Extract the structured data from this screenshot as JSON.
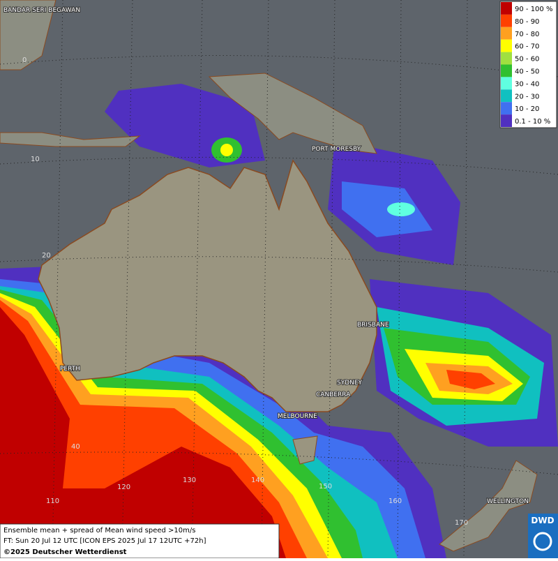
{
  "legend": {
    "items": [
      {
        "label": "90 - 100 %",
        "color": "#c00000"
      },
      {
        "label": "80 - 90",
        "color": "#ff4000"
      },
      {
        "label": "70 - 80",
        "color": "#ffa020"
      },
      {
        "label": "60 - 70",
        "color": "#ffff00"
      },
      {
        "label": "50 - 60",
        "color": "#a0e040"
      },
      {
        "label": "40 - 50",
        "color": "#30c030"
      },
      {
        "label": "30 - 40",
        "color": "#60ffe0"
      },
      {
        "label": "20 - 30",
        "color": "#10c0c0"
      },
      {
        "label": "10 - 20",
        "color": "#4070f0"
      },
      {
        "label": "0.1 - 10 %",
        "color": "#5030c0"
      }
    ]
  },
  "cities": [
    "BANDAR SERI BEGAWAN",
    "PORT MORESBY",
    "BRISBANE",
    "PERTH",
    "SYDNEY",
    "CANBERRA",
    "MELBOURNE",
    "WELLINGTON"
  ],
  "grid_labels": [
    "0",
    "10",
    "20",
    "40",
    "110",
    "120",
    "130",
    "140",
    "150",
    "160",
    "170"
  ],
  "footer": {
    "line1": "Ensemble mean + spread of Mean wind speed >10m/s",
    "line2": "FT: Sun 20 Jul 12 UTC [ICON EPS 2025 Jul 17 12UTC +72h]",
    "line3": "©2025 Deutscher Wetterdienst"
  },
  "logo": "DWD"
}
